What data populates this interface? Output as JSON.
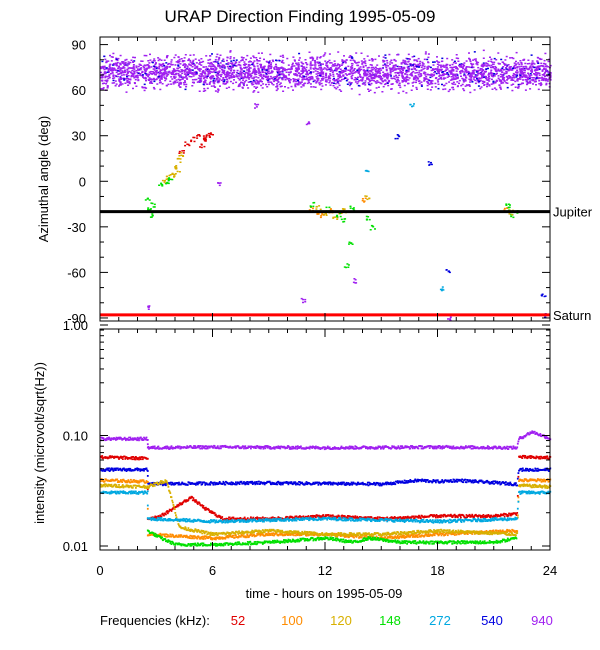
{
  "title": "URAP Direction Finding  1995-05-09",
  "x_axis_label": "time - hours on 1995-05-09",
  "freq_legend_label": "Frequencies (kHz):",
  "colors": {
    "52": "#e00000",
    "100": "#ff8c00",
    "120": "#d8b000",
    "148": "#00e000",
    "272": "#00a8e0",
    "540": "#0000e0",
    "940": "#a020f0"
  },
  "chart_data": [
    {
      "type": "scatter",
      "ylabel": "Azimuthal angle (deg)",
      "xlim": [
        0,
        24
      ],
      "ylim": [
        -92,
        95
      ],
      "yticks": [
        90,
        60,
        30,
        0,
        -30,
        -60,
        -90
      ],
      "xticks": [
        0,
        6,
        12,
        18,
        24
      ],
      "reference_lines": [
        {
          "label": "Jupiter",
          "value": -20,
          "color": "#000000"
        },
        {
          "label": "Saturn",
          "value": -88,
          "color": "#ff0000"
        }
      ],
      "series": [
        {
          "frequency": "940",
          "x_range": [
            0,
            24
          ],
          "y_center": 72,
          "y_spread": 8
        },
        {
          "frequency": "52",
          "points": [
            [
              4.3,
              20
            ],
            [
              4.6,
              25
            ],
            [
              4.9,
              28
            ],
            [
              5.2,
              30
            ],
            [
              5.5,
              29
            ],
            [
              5.7,
              31
            ],
            [
              5.9,
              32
            ],
            [
              5.6,
              28
            ],
            [
              5.4,
              24
            ]
          ]
        },
        {
          "frequency": "120",
          "points": [
            [
              3.4,
              0
            ],
            [
              3.6,
              3
            ],
            [
              3.8,
              6
            ],
            [
              4.0,
              10
            ],
            [
              4.2,
              14
            ],
            [
              4.3,
              18
            ],
            [
              4.1,
              8
            ],
            [
              3.9,
              4
            ]
          ]
        },
        {
          "frequency": "148",
          "points": [
            [
              2.5,
              -12
            ],
            [
              2.6,
              -18
            ],
            [
              2.7,
              -22
            ],
            [
              2.8,
              -15
            ],
            [
              3.2,
              -2
            ],
            [
              3.5,
              0
            ],
            [
              3.7,
              2
            ],
            [
              12.9,
              -25
            ],
            [
              13.3,
              -40
            ],
            [
              13.1,
              -55
            ],
            [
              14.5,
              -30
            ],
            [
              21.8,
              -18
            ],
            [
              22.0,
              -22
            ]
          ]
        },
        {
          "frequency": "100",
          "points": [
            [
              11.2,
              -18
            ],
            [
              11.5,
              -20
            ],
            [
              11.8,
              -22
            ],
            [
              12.3,
              -19
            ],
            [
              12.8,
              -21
            ],
            [
              14.0,
              -12
            ],
            [
              21.6,
              -18
            ]
          ]
        },
        {
          "frequency": "120",
          "points": [
            [
              11.6,
              -17
            ],
            [
              12.0,
              -21
            ],
            [
              12.5,
              -24
            ],
            [
              13.0,
              -19
            ],
            [
              14.2,
              -10
            ],
            [
              21.9,
              -20
            ]
          ]
        },
        {
          "frequency": "148",
          "points": [
            [
              11.3,
              -15
            ],
            [
              12.1,
              -18
            ],
            [
              12.7,
              -22
            ],
            [
              13.4,
              -17
            ],
            [
              14.3,
              -24
            ],
            [
              21.7,
              -16
            ],
            [
              22.1,
              -19
            ]
          ]
        },
        {
          "frequency": "272",
          "points": [
            [
              14.2,
              8
            ],
            [
              16.6,
              50
            ],
            [
              18.2,
              -70
            ]
          ]
        },
        {
          "frequency": "540",
          "points": [
            [
              15.8,
              30
            ],
            [
              17.6,
              12
            ],
            [
              18.5,
              -58
            ],
            [
              23.6,
              -75
            ],
            [
              23.8,
              -88
            ]
          ]
        },
        {
          "frequency": "940",
          "points": [
            [
              2.6,
              -83
            ],
            [
              6.3,
              -2
            ],
            [
              8.3,
              50
            ],
            [
              10.8,
              -78
            ],
            [
              11.0,
              38
            ],
            [
              13.5,
              -65
            ],
            [
              18.6,
              -90
            ]
          ]
        }
      ]
    },
    {
      "type": "line",
      "ylabel": "intensity (microvolt/sqrt(Hz))",
      "xlim": [
        0,
        24
      ],
      "ylim": [
        0.01,
        1.0
      ],
      "yscale": "log",
      "ytick_labels": [
        "1.00",
        "0.10",
        "0.01"
      ],
      "xticks": [
        0,
        6,
        12,
        18,
        24
      ],
      "series": [
        {
          "frequency": "940",
          "points": [
            [
              0,
              0.095
            ],
            [
              2.5,
              0.095
            ],
            [
              2.5,
              0.079
            ],
            [
              6,
              0.08
            ],
            [
              12,
              0.079
            ],
            [
              18,
              0.08
            ],
            [
              22.2,
              0.079
            ],
            [
              22.3,
              0.095
            ],
            [
              23,
              0.11
            ],
            [
              24,
              0.095
            ]
          ]
        },
        {
          "frequency": "52",
          "points": [
            [
              0,
              0.065
            ],
            [
              2.5,
              0.063
            ],
            [
              2.5,
              0.018
            ],
            [
              3.2,
              0.019
            ],
            [
              4.0,
              0.023
            ],
            [
              4.8,
              0.028
            ],
            [
              5.6,
              0.022
            ],
            [
              6.5,
              0.018
            ],
            [
              9,
              0.018
            ],
            [
              12,
              0.019
            ],
            [
              15,
              0.018
            ],
            [
              18,
              0.019
            ],
            [
              21,
              0.019
            ],
            [
              22.2,
              0.02
            ],
            [
              22.3,
              0.065
            ],
            [
              24,
              0.064
            ]
          ]
        },
        {
          "frequency": "540",
          "points": [
            [
              0,
              0.05
            ],
            [
              2.5,
              0.05
            ],
            [
              2.5,
              0.037
            ],
            [
              8,
              0.038
            ],
            [
              15,
              0.037
            ],
            [
              17,
              0.04
            ],
            [
              18,
              0.039
            ],
            [
              19,
              0.04
            ],
            [
              22.2,
              0.037
            ],
            [
              22.3,
              0.05
            ],
            [
              24,
              0.05
            ]
          ]
        },
        {
          "frequency": "100",
          "points": [
            [
              0,
              0.04
            ],
            [
              2.5,
              0.039
            ],
            [
              2.5,
              0.013
            ],
            [
              6,
              0.012
            ],
            [
              9,
              0.013
            ],
            [
              12,
              0.013
            ],
            [
              15,
              0.012
            ],
            [
              18,
              0.013
            ],
            [
              22.2,
              0.014
            ],
            [
              22.3,
              0.04
            ],
            [
              24,
              0.04
            ]
          ]
        },
        {
          "frequency": "120",
          "points": [
            [
              0,
              0.036
            ],
            [
              2.5,
              0.035
            ],
            [
              3.5,
              0.04
            ],
            [
              4.2,
              0.015
            ],
            [
              6,
              0.013
            ],
            [
              9,
              0.014
            ],
            [
              12,
              0.013
            ],
            [
              15,
              0.013
            ],
            [
              18,
              0.014
            ],
            [
              22.2,
              0.013
            ],
            [
              22.3,
              0.036
            ],
            [
              24,
              0.035
            ]
          ]
        },
        {
          "frequency": "272",
          "points": [
            [
              0,
              0.031
            ],
            [
              2.5,
              0.031
            ],
            [
              2.5,
              0.018
            ],
            [
              6,
              0.017
            ],
            [
              12,
              0.018
            ],
            [
              18,
              0.017
            ],
            [
              22.2,
              0.018
            ],
            [
              22.3,
              0.031
            ],
            [
              24,
              0.031
            ]
          ]
        },
        {
          "frequency": "148",
          "points": [
            [
              2.5,
              0.014
            ],
            [
              3.2,
              0.012
            ],
            [
              4.0,
              0.0105
            ],
            [
              6,
              0.0105
            ],
            [
              9,
              0.011
            ],
            [
              12,
              0.012
            ],
            [
              13.5,
              0.011
            ],
            [
              14.3,
              0.012
            ],
            [
              16,
              0.011
            ],
            [
              18,
              0.011
            ],
            [
              21,
              0.011
            ],
            [
              22.2,
              0.012
            ]
          ]
        }
      ]
    }
  ],
  "legend_frequencies": [
    "52",
    "100",
    "120",
    "148",
    "272",
    "540",
    "940"
  ]
}
